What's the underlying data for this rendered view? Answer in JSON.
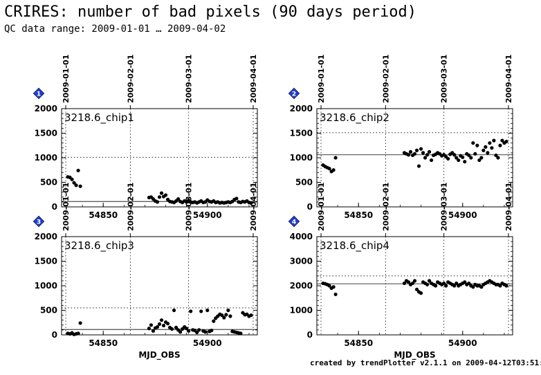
{
  "page": {
    "title": "CRIRES: number of bad pixels (90 days period)",
    "subtitle": "QC data range: 2009-01-01 … 2009-04-02",
    "credit": "created by trendPlotter v2.1.1 on 2009-04-12T03:51:03"
  },
  "colors": {
    "badge": "#1f3fd8",
    "points": "#000000",
    "axes": "#000000"
  },
  "chart_data": [
    {
      "type": "scatter",
      "badge": "1",
      "label": "3218.6_chip1",
      "xlabel": "",
      "ylabel": "",
      "xlim": [
        54830,
        54924
      ],
      "ylim": [
        0,
        2000
      ],
      "yticks": [
        0,
        500,
        1000,
        1500,
        2000
      ],
      "xticks": [
        54850,
        54900
      ],
      "date_axis": [
        {
          "label": "2009-01-01",
          "mjd": 54832
        },
        {
          "label": "2009-02-01",
          "mjd": 54863
        },
        {
          "label": "2009-03-01",
          "mjd": 54891
        },
        {
          "label": "2009-04-01",
          "mjd": 54922
        }
      ],
      "reference_line": 110,
      "dotted_line": 1010,
      "points": {
        "x": [
          54833,
          54834,
          54835,
          54836,
          54837,
          54838,
          54839,
          54872,
          54873,
          54874,
          54875,
          54876,
          54877,
          54878,
          54879,
          54880,
          54881,
          54882,
          54883,
          54884,
          54885,
          54886,
          54887,
          54888,
          54889,
          54890,
          54891,
          54892,
          54893,
          54894,
          54895,
          54896,
          54897,
          54898,
          54899,
          54900,
          54901,
          54902,
          54903,
          54904,
          54905,
          54906,
          54907,
          54908,
          54909,
          54910,
          54911,
          54912,
          54913,
          54914,
          54915,
          54916,
          54917,
          54918,
          54919,
          54920,
          54921
        ],
        "y": [
          610,
          600,
          560,
          490,
          440,
          740,
          420,
          190,
          200,
          160,
          120,
          100,
          200,
          280,
          210,
          240,
          150,
          110,
          100,
          90,
          120,
          160,
          110,
          90,
          120,
          100,
          130,
          100,
          90,
          100,
          80,
          100,
          120,
          90,
          100,
          140,
          110,
          100,
          120,
          90,
          100,
          80,
          90,
          80,
          90,
          100,
          90,
          110,
          150,
          170,
          100,
          90,
          110,
          100,
          120,
          90,
          80
        ]
      }
    },
    {
      "type": "scatter",
      "badge": "2",
      "label": "3218.6_chip2",
      "xlabel": "",
      "ylabel": "",
      "xlim": [
        54830,
        54924
      ],
      "ylim": [
        0,
        2000
      ],
      "yticks": [
        0,
        500,
        1000,
        1500,
        2000
      ],
      "xticks": [
        54850,
        54900
      ],
      "date_axis": [
        {
          "label": "2009-01-01",
          "mjd": 54832
        },
        {
          "label": "2009-02-01",
          "mjd": 54863
        },
        {
          "label": "2009-03-01",
          "mjd": 54891
        },
        {
          "label": "2009-04-01",
          "mjd": 54922
        }
      ],
      "reference_line": 1060,
      "dotted_line": 1510,
      "points": {
        "x": [
          54833,
          54834,
          54835,
          54836,
          54837,
          54838,
          54839,
          54872,
          54873,
          54874,
          54875,
          54876,
          54877,
          54878,
          54879,
          54880,
          54881,
          54882,
          54883,
          54884,
          54885,
          54886,
          54887,
          54888,
          54889,
          54890,
          54891,
          54892,
          54893,
          54894,
          54895,
          54896,
          54897,
          54898,
          54899,
          54900,
          54901,
          54902,
          54903,
          54904,
          54905,
          54906,
          54907,
          54908,
          54909,
          54910,
          54911,
          54912,
          54913,
          54914,
          54915,
          54916,
          54917,
          54918,
          54919,
          54920,
          54921
        ],
        "y": [
          850,
          820,
          800,
          780,
          720,
          750,
          1000,
          1100,
          1080,
          1060,
          1120,
          1050,
          1080,
          1150,
          830,
          1180,
          1100,
          1000,
          1060,
          1120,
          950,
          1050,
          1070,
          1100,
          1080,
          1040,
          1060,
          1020,
          980,
          1070,
          1100,
          1060,
          1000,
          950,
          1040,
          1010,
          920,
          1080,
          1050,
          1000,
          1300,
          1080,
          1250,
          950,
          1000,
          1150,
          1220,
          1100,
          1300,
          1200,
          1350,
          1050,
          1000,
          1250,
          1350,
          1300,
          1330
        ]
      }
    },
    {
      "type": "scatter",
      "badge": "3",
      "label": "3218.6_chip3",
      "xlabel": "MJD_OBS",
      "ylabel": "",
      "xlim": [
        54830,
        54924
      ],
      "ylim": [
        0,
        2000
      ],
      "yticks": [
        0,
        500,
        1000,
        1500,
        2000
      ],
      "xticks": [
        54850,
        54900
      ],
      "date_axis": [
        {
          "label": "2009-01-01",
          "mjd": 54832
        },
        {
          "label": "2009-02-01",
          "mjd": 54863
        },
        {
          "label": "2009-03-01",
          "mjd": 54891
        },
        {
          "label": "2009-04-01",
          "mjd": 54922
        }
      ],
      "reference_line": 110,
      "dotted_line": 550,
      "points": {
        "x": [
          54833,
          54834,
          54835,
          54836,
          54837,
          54838,
          54839,
          54872,
          54873,
          54874,
          54875,
          54876,
          54877,
          54878,
          54879,
          54880,
          54881,
          54882,
          54883,
          54884,
          54885,
          54886,
          54887,
          54888,
          54889,
          54890,
          54891,
          54892,
          54893,
          54894,
          54895,
          54896,
          54897,
          54898,
          54899,
          54900,
          54901,
          54902,
          54903,
          54904,
          54905,
          54906,
          54907,
          54908,
          54909,
          54910,
          54911,
          54912,
          54913,
          54914,
          54915,
          54916,
          54917,
          54918,
          54919,
          54920,
          54921
        ],
        "y": [
          30,
          20,
          40,
          10,
          20,
          30,
          240,
          130,
          200,
          80,
          140,
          160,
          220,
          300,
          190,
          260,
          230,
          150,
          120,
          500,
          150,
          100,
          60,
          120,
          160,
          130,
          80,
          480,
          100,
          90,
          50,
          100,
          480,
          80,
          60,
          500,
          70,
          90,
          280,
          340,
          380,
          420,
          400,
          350,
          410,
          500,
          380,
          70,
          60,
          50,
          40,
          30,
          450,
          410,
          420,
          380,
          400
        ]
      }
    },
    {
      "type": "scatter",
      "badge": "4",
      "label": "3218.6_chip4",
      "xlabel": "MJD_OBS",
      "ylabel": "",
      "xlim": [
        54830,
        54924
      ],
      "ylim": [
        0,
        4000
      ],
      "yticks": [
        0,
        1000,
        2000,
        3000,
        4000
      ],
      "xticks": [
        54850,
        54900
      ],
      "date_axis": [
        {
          "label": "2009-01-01",
          "mjd": 54832
        },
        {
          "label": "2009-02-01",
          "mjd": 54863
        },
        {
          "label": "2009-03-01",
          "mjd": 54891
        },
        {
          "label": "2009-04-01",
          "mjd": 54922
        }
      ],
      "reference_line": 2080,
      "dotted_line": 2400,
      "points": {
        "x": [
          54833,
          54834,
          54835,
          54836,
          54837,
          54838,
          54839,
          54872,
          54873,
          54874,
          54875,
          54876,
          54877,
          54878,
          54879,
          54880,
          54881,
          54882,
          54883,
          54884,
          54885,
          54886,
          54887,
          54888,
          54889,
          54890,
          54891,
          54892,
          54893,
          54894,
          54895,
          54896,
          54897,
          54898,
          54899,
          54900,
          54901,
          54902,
          54903,
          54904,
          54905,
          54906,
          54907,
          54908,
          54909,
          54910,
          54911,
          54912,
          54913,
          54914,
          54915,
          54916,
          54917,
          54918,
          54919,
          54920,
          54921
        ],
        "y": [
          2100,
          2080,
          2050,
          2000,
          1900,
          1950,
          1650,
          2100,
          2200,
          2150,
          2050,
          2100,
          2200,
          1850,
          1750,
          1700,
          2150,
          2100,
          2050,
          2200,
          2100,
          2050,
          2000,
          2150,
          2100,
          2050,
          2100,
          2000,
          2150,
          2100,
          2050,
          2000,
          2100,
          2000,
          2050,
          2100,
          2150,
          2050,
          2100,
          2000,
          1950,
          2050,
          2000,
          2000,
          1950,
          2050,
          2100,
          2150,
          2200,
          2150,
          2100,
          2050,
          2050,
          2000,
          2100,
          2050,
          2000
        ]
      }
    }
  ]
}
